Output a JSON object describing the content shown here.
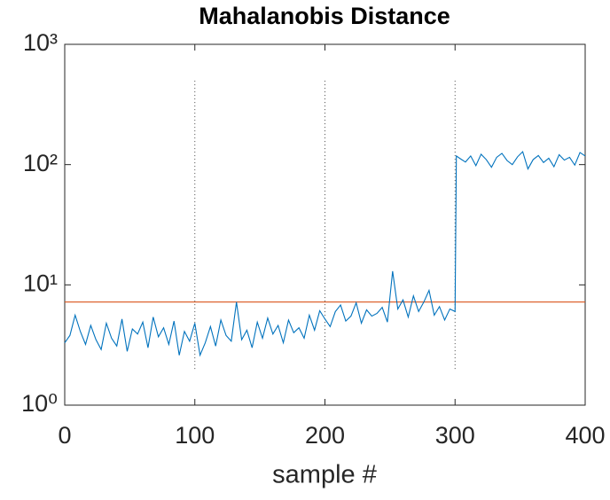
{
  "chart_data": {
    "type": "line",
    "title": "Mahalanobis Distance",
    "x_label": "sample #",
    "x": [
      0,
      4,
      8,
      12,
      16,
      20,
      24,
      28,
      32,
      36,
      40,
      44,
      48,
      52,
      56,
      60,
      64,
      68,
      72,
      76,
      80,
      84,
      88,
      92,
      96,
      100,
      104,
      108,
      112,
      116,
      120,
      124,
      128,
      132,
      136,
      140,
      144,
      148,
      152,
      156,
      160,
      164,
      168,
      172,
      176,
      180,
      184,
      188,
      192,
      196,
      200,
      204,
      208,
      212,
      216,
      220,
      224,
      228,
      232,
      236,
      240,
      244,
      248,
      252,
      256,
      260,
      264,
      268,
      272,
      276,
      280,
      284,
      288,
      292,
      296,
      300,
      301,
      304,
      308,
      312,
      316,
      320,
      324,
      328,
      332,
      336,
      340,
      344,
      348,
      352,
      356,
      360,
      364,
      368,
      372,
      376,
      380,
      384,
      388,
      392,
      396,
      400
    ],
    "series": [
      {
        "color": "#0072bd",
        "values": [
          3.3,
          3.8,
          5.6,
          4.1,
          3.2,
          4.6,
          3.5,
          2.9,
          4.8,
          3.6,
          3.1,
          5.2,
          2.8,
          4.3,
          3.9,
          4.9,
          3.0,
          5.4,
          3.7,
          4.4,
          3.2,
          5.0,
          2.6,
          4.1,
          3.4,
          4.8,
          2.6,
          3.3,
          4.5,
          3.1,
          5.1,
          3.8,
          3.4,
          7.2,
          3.5,
          4.2,
          3.0,
          4.9,
          3.6,
          5.3,
          3.9,
          4.6,
          3.3,
          5.1,
          4.0,
          4.4,
          3.6,
          5.6,
          4.2,
          6.1,
          5.2,
          4.5,
          6.0,
          6.8,
          5.0,
          5.5,
          7.1,
          4.8,
          6.2,
          5.5,
          5.8,
          6.5,
          4.9,
          13.0,
          6.3,
          7.5,
          5.4,
          8.1,
          6.0,
          7.2,
          9.0,
          5.6,
          6.6,
          5.1,
          6.3,
          6.0,
          118,
          112,
          105,
          118,
          98,
          122,
          110,
          95,
          115,
          124,
          108,
          100,
          116,
          128,
          92,
          110,
          119,
          104,
          113,
          96,
          121,
          109,
          115,
          99,
          126,
          118
        ]
      }
    ],
    "threshold": {
      "value": 7.2,
      "color": "#d95319"
    },
    "vlines": {
      "x": [
        100,
        200,
        300
      ],
      "span": [
        2,
        500
      ]
    },
    "xlim": [
      0,
      400
    ],
    "xticks": [
      0,
      100,
      200,
      300,
      400
    ],
    "ylim": [
      1,
      1000
    ],
    "yscale": "log",
    "yticks": [
      {
        "value": 1,
        "label": "10⁰"
      },
      {
        "value": 10,
        "label": "10¹"
      },
      {
        "value": 100,
        "label": "10²"
      },
      {
        "value": 1000,
        "label": "10³"
      }
    ]
  }
}
